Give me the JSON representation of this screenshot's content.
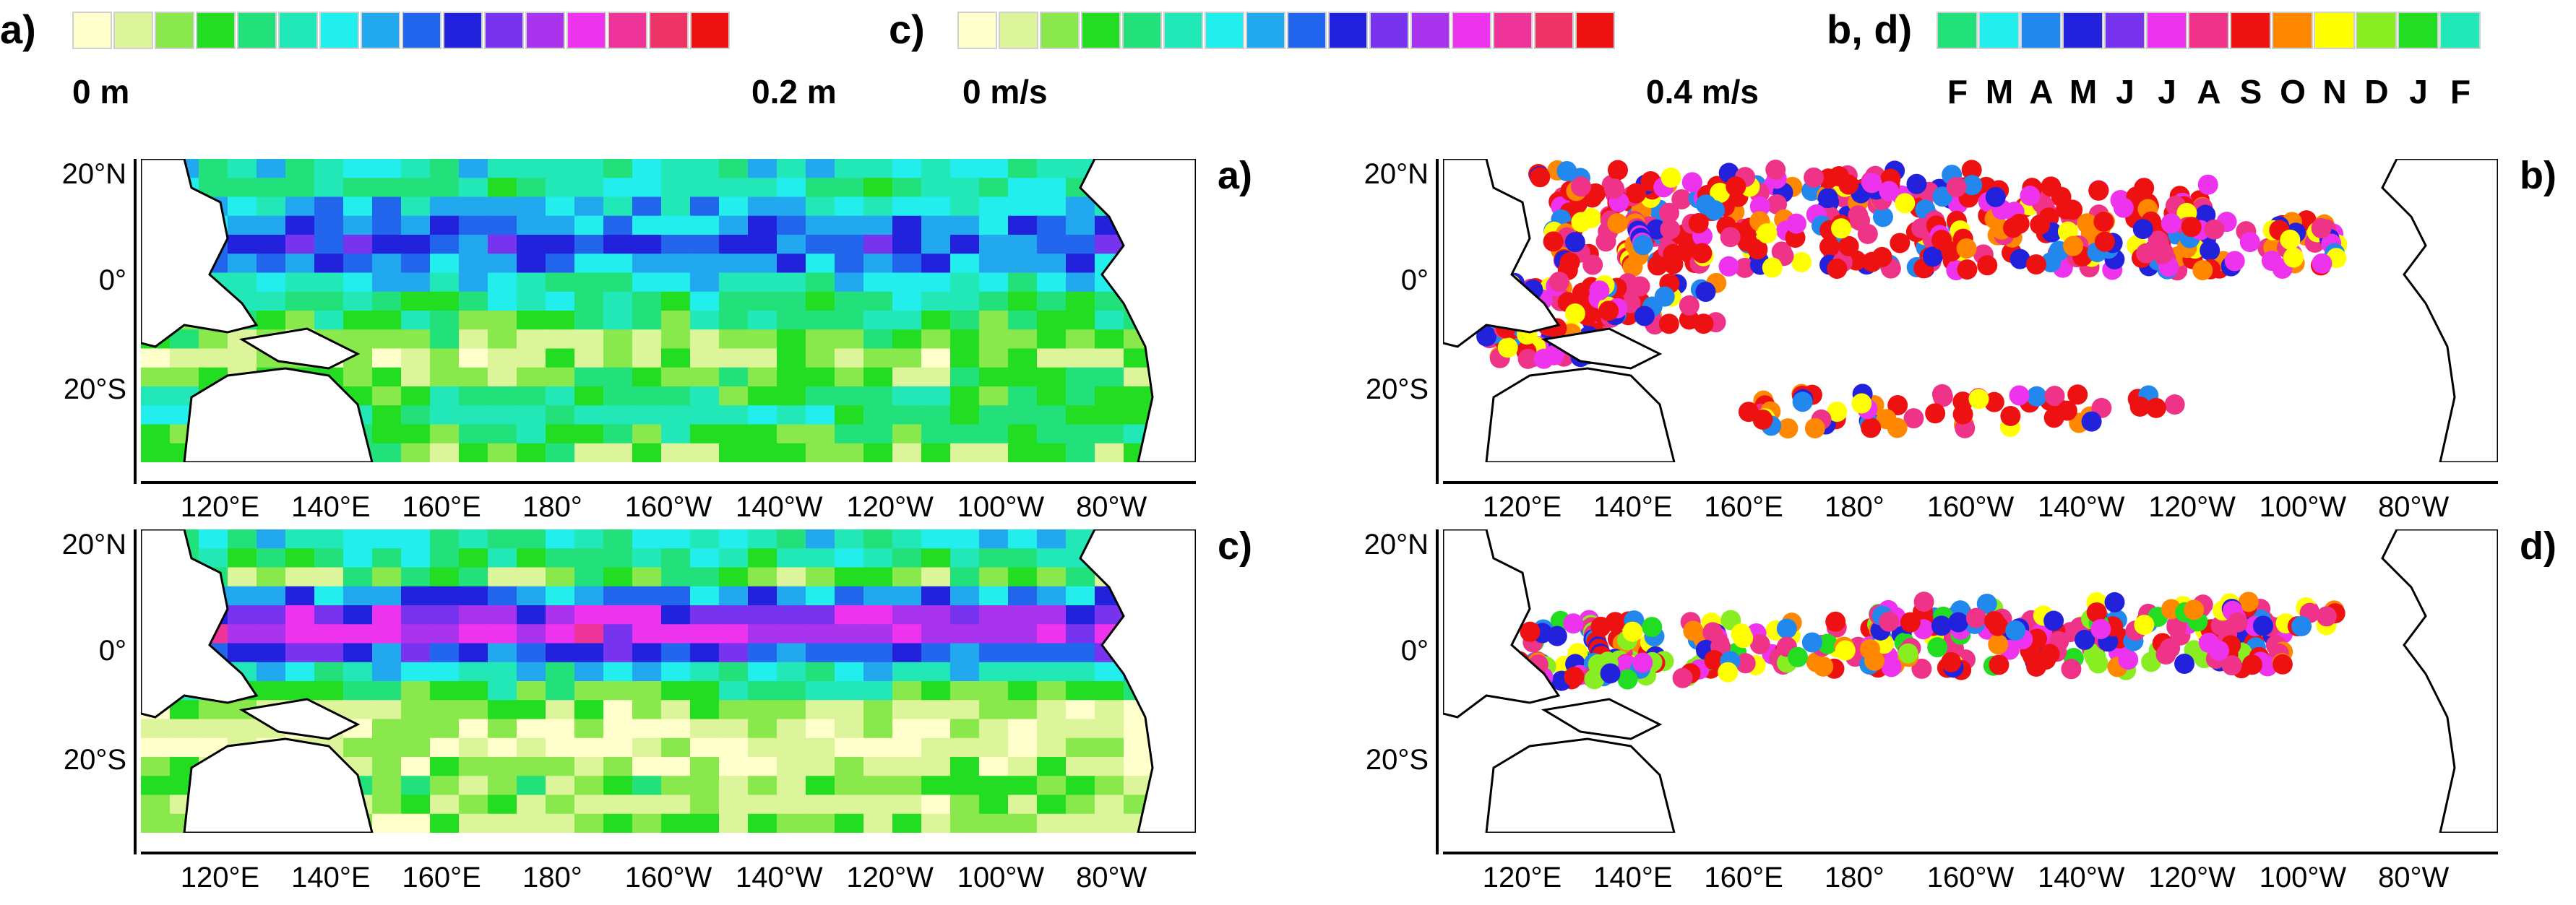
{
  "colorbars": {
    "a": {
      "tag": "a)",
      "min_label": "0 m",
      "max_label": "0.2 m",
      "colors": [
        "#ffffcc",
        "#ddf59a",
        "#88e84c",
        "#22dd22",
        "#22e07a",
        "#22e8b8",
        "#22eeee",
        "#22a8ee",
        "#2266ee",
        "#2222dd",
        "#7733ee",
        "#aa33ee",
        "#ee33ee",
        "#ee3399",
        "#ee3366",
        "#ee1111"
      ]
    },
    "c": {
      "tag": "c)",
      "min_label": "0 m/s",
      "max_label": "0.4 m/s",
      "colors": [
        "#ffffcc",
        "#ddf59a",
        "#88e84c",
        "#22dd22",
        "#22e07a",
        "#22e8b8",
        "#22eeee",
        "#22a8ee",
        "#2266ee",
        "#2222dd",
        "#7733ee",
        "#aa33ee",
        "#ee33ee",
        "#ee3399",
        "#ee3366",
        "#ee1111"
      ]
    },
    "bd": {
      "tag": "b, d)",
      "months": [
        "F",
        "M",
        "A",
        "M",
        "J",
        "J",
        "A",
        "S",
        "O",
        "N",
        "D",
        "J",
        "F"
      ],
      "colors": [
        "#22e07a",
        "#22eeee",
        "#2288ee",
        "#2222dd",
        "#7733ee",
        "#ee33ee",
        "#ee3388",
        "#ee1111",
        "#ff8800",
        "#ffff00",
        "#88ee22",
        "#22dd22",
        "#22e8b8"
      ]
    }
  },
  "axes": {
    "lat_labels": [
      "20°N",
      "0°",
      "20°S"
    ],
    "lon_labels": [
      "120°E",
      "140°E",
      "160°E",
      "180°",
      "160°W",
      "140°W",
      "120°W",
      "100°W",
      "80°W"
    ]
  },
  "panels": [
    {
      "id": "a",
      "tag": "a)",
      "kind": "field",
      "variable": "m"
    },
    {
      "id": "b",
      "tag": "b)",
      "kind": "scatter",
      "variable": "month"
    },
    {
      "id": "c",
      "tag": "c)",
      "kind": "field",
      "variable": "m/s"
    },
    {
      "id": "d",
      "tag": "d)",
      "kind": "scatter",
      "variable": "month"
    }
  ]
}
